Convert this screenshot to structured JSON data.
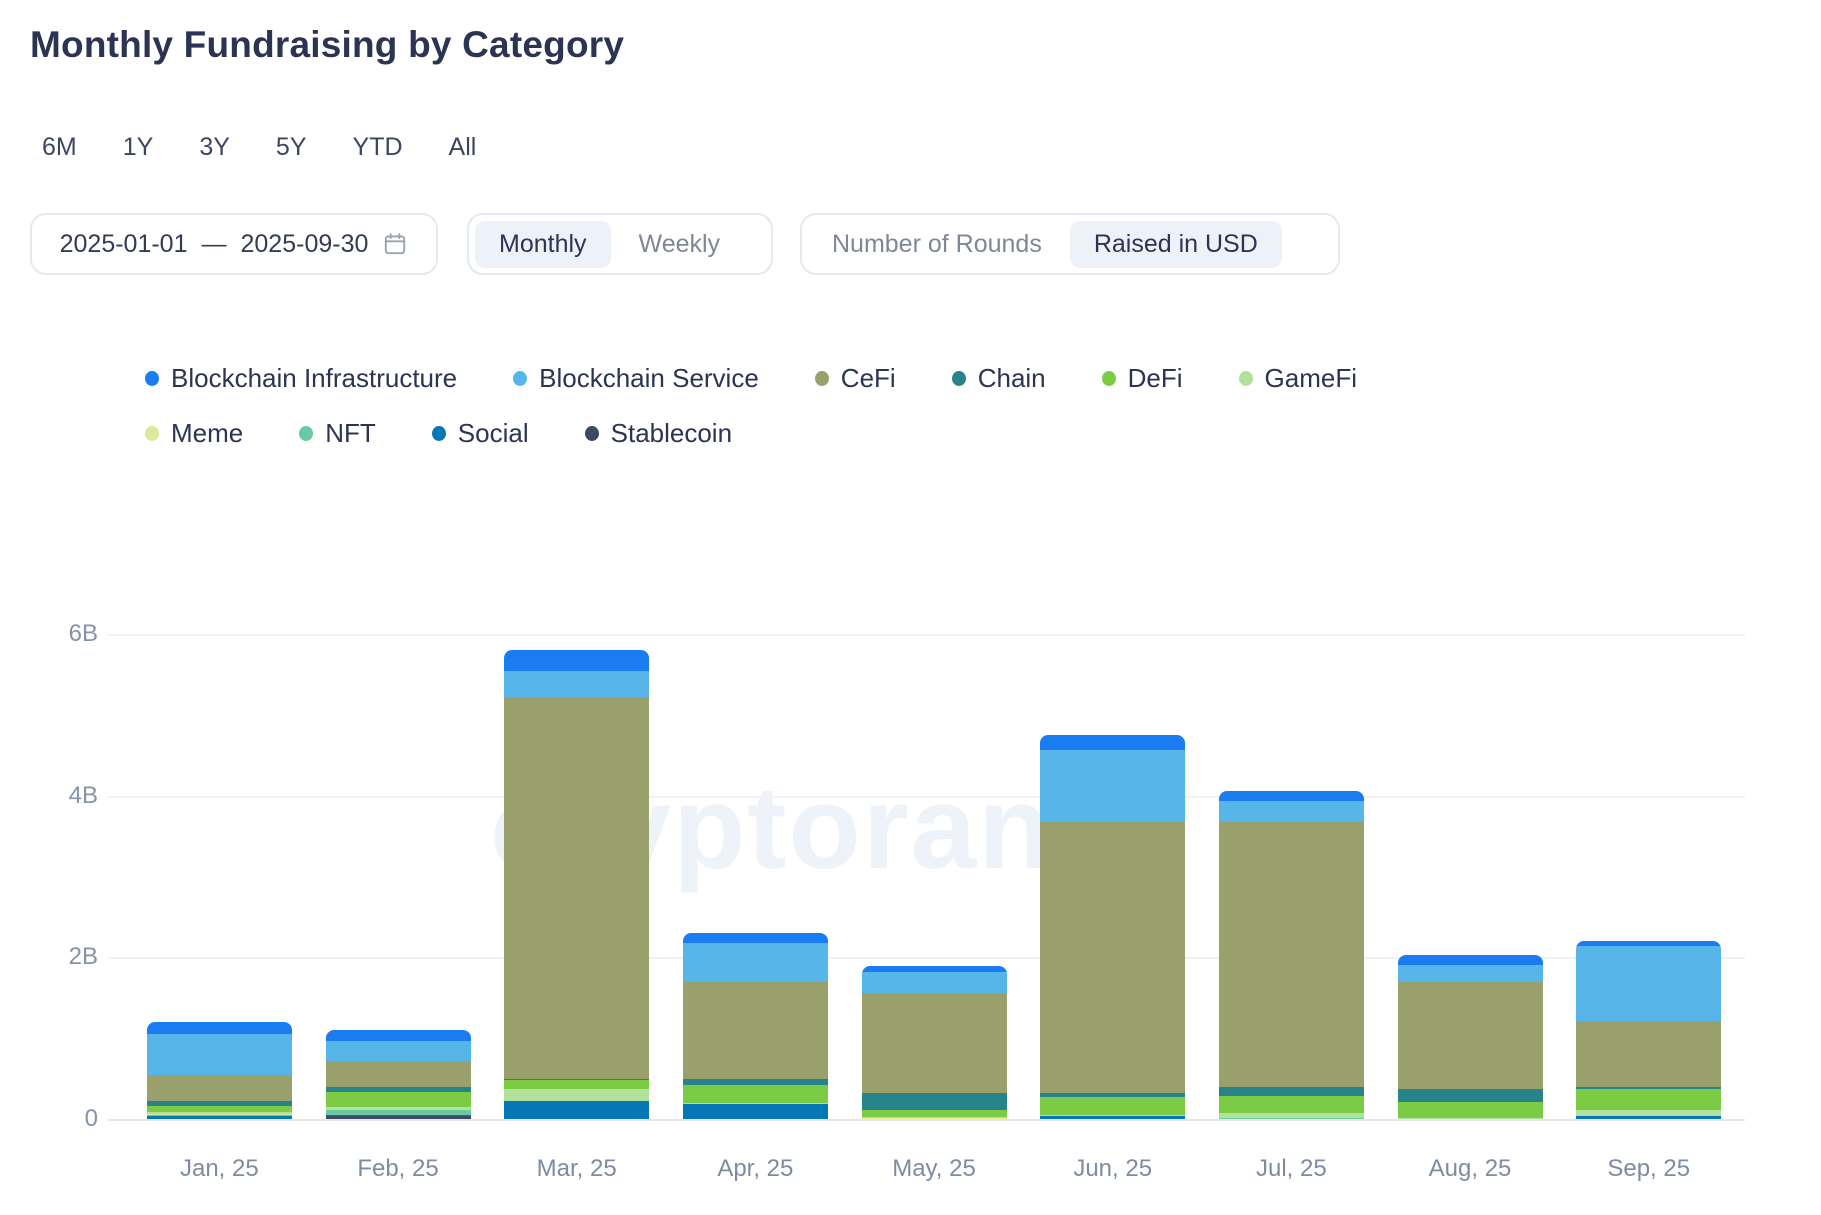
{
  "header": {
    "title": "Monthly Fundraising by Category"
  },
  "range_buttons": [
    "6M",
    "1Y",
    "3Y",
    "5Y",
    "YTD",
    "All"
  ],
  "controls": {
    "date_range": {
      "start": "2025-01-01",
      "separator": "—",
      "end": "2025-09-30",
      "icon": "calendar-icon"
    },
    "granularity": {
      "options": [
        "Monthly",
        "Weekly"
      ],
      "selected": "Monthly"
    },
    "metric": {
      "options": [
        "Number of Rounds",
        "Raised in USD"
      ],
      "selected": "Raised in USD"
    }
  },
  "watermark": "cryptorank",
  "colors": {
    "text_dark": "#2b3553",
    "text_muted": "#7d8796",
    "axis_label": "#8593a8",
    "gridline": "#eef1f6",
    "baseline": "#e3e8ef",
    "pill_bg": "#edf2f9",
    "border": "#e4e9f0"
  },
  "chart_data": {
    "type": "bar",
    "stacked": true,
    "title": "Monthly Fundraising by Category",
    "unit": "billions USD",
    "ylabel": "Raised in USD",
    "ylim": [
      0,
      6
    ],
    "yticks": [
      {
        "value": 0,
        "label": "0"
      },
      {
        "value": 2,
        "label": "2B"
      },
      {
        "value": 4,
        "label": "4B"
      },
      {
        "value": 6,
        "label": "6B"
      }
    ],
    "grid": true,
    "legend_position": "top",
    "categories": [
      "Jan, 25",
      "Feb, 25",
      "Mar, 25",
      "Apr, 25",
      "May, 25",
      "Jun, 25",
      "Jul, 25",
      "Aug, 25",
      "Sep, 25"
    ],
    "series": [
      {
        "name": "Blockchain Infrastructure",
        "color": "#1b7cf2",
        "values": [
          0.15,
          0.13,
          0.25,
          0.12,
          0.07,
          0.19,
          0.12,
          0.12,
          0.06
        ]
      },
      {
        "name": "Blockchain Service",
        "color": "#58b5e9",
        "values": [
          0.5,
          0.25,
          0.33,
          0.48,
          0.26,
          0.89,
          0.26,
          0.21,
          0.92
        ]
      },
      {
        "name": "CeFi",
        "color": "#99a06b",
        "values": [
          0.33,
          0.32,
          4.72,
          1.2,
          1.23,
          3.36,
          3.28,
          1.32,
          0.82
        ]
      },
      {
        "name": "Chain",
        "color": "#27858a",
        "values": [
          0.06,
          0.06,
          0.01,
          0.08,
          0.22,
          0.04,
          0.11,
          0.17,
          0.02
        ]
      },
      {
        "name": "DeFi",
        "color": "#7ccb44",
        "values": [
          0.07,
          0.19,
          0.12,
          0.22,
          0.08,
          0.23,
          0.21,
          0.19,
          0.27
        ]
      },
      {
        "name": "GameFi",
        "color": "#b2e19b",
        "values": [
          0.03,
          0.03,
          0.14,
          0.01,
          0.02,
          0.01,
          0.06,
          0.03,
          0.07
        ]
      },
      {
        "name": "Meme",
        "color": "#dbe998",
        "values": [
          0.01,
          0.01,
          0.0,
          0.0,
          0.02,
          0.0,
          0.0,
          0.0,
          0.0
        ]
      },
      {
        "name": "NFT",
        "color": "#68caa2",
        "values": [
          0.01,
          0.06,
          0.0,
          0.0,
          0.0,
          0.0,
          0.03,
          0.0,
          0.0
        ]
      },
      {
        "name": "Social",
        "color": "#0677b5",
        "values": [
          0.04,
          0.01,
          0.24,
          0.2,
          0.0,
          0.05,
          0.0,
          0.0,
          0.05
        ]
      },
      {
        "name": "Stablecoin",
        "color": "#3e4a63",
        "values": [
          0.01,
          0.05,
          0.0,
          0.0,
          0.0,
          0.0,
          0.0,
          0.0,
          0.0
        ]
      }
    ],
    "legend_rows": [
      6,
      4
    ]
  }
}
